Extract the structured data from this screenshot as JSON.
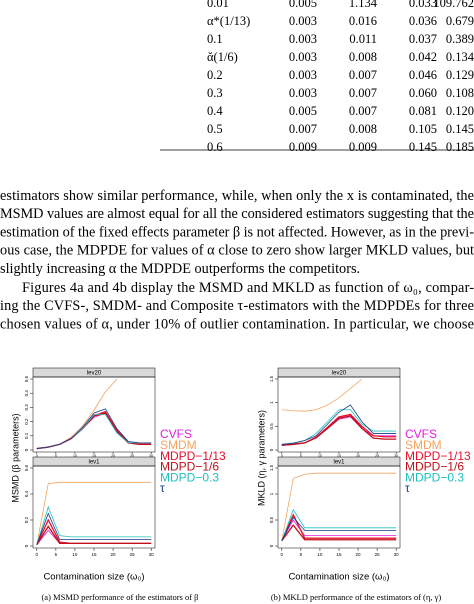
{
  "table": {
    "rows": [
      [
        "0.01",
        "0.005",
        "1.134",
        "0.033",
        "109.762"
      ],
      [
        "α*(1/13)",
        "0.003",
        "0.016",
        "0.036",
        "0.679"
      ],
      [
        "0.1",
        "0.003",
        "0.011",
        "0.037",
        "0.389"
      ],
      [
        "ᾰ(1/6)",
        "0.003",
        "0.008",
        "0.042",
        "0.134"
      ],
      [
        "0.2",
        "0.003",
        "0.007",
        "0.046",
        "0.129"
      ],
      [
        "0.3",
        "0.003",
        "0.007",
        "0.060",
        "0.108"
      ],
      [
        "0.4",
        "0.005",
        "0.007",
        "0.081",
        "0.120"
      ],
      [
        "0.5",
        "0.007",
        "0.008",
        "0.105",
        "0.145"
      ],
      [
        "0.6",
        "0.009",
        "0.009",
        "0.145",
        "0.185"
      ]
    ]
  },
  "text": {
    "lines": [
      "estimators show similar performance, while, when only the x is contaminated, the",
      "MSMD values are almost equal for all the considered estimators suggesting that the",
      "estimation of the fixed effects parameter β is not affected. However, as in the previ-",
      "ous case, the MDPDE for values of α close to zero show larger MKLD values, but",
      "slightly increasing α the MDPDE outperforms the competitors.",
      "Figures 4a and 4b display the MSMD and MKLD as function of ω₀, compar-",
      "ing the CVFS-, SMDM- and Composite τ-estimators with the MDPDEs for three",
      "chosen values of α, under 10% of outlier contamination. In particular, we choose"
    ]
  },
  "figures": [
    {
      "caption": "(a) MSMD performance of the estimators of β",
      "ylabel": "MSMD (β parameters)",
      "xlabel": "Contamination size (ω₀)",
      "x": [
        0,
        3,
        6,
        9,
        12,
        15,
        18,
        21,
        24,
        27,
        30
      ],
      "xlim": [
        -1,
        31
      ],
      "xticks": [
        0,
        5,
        10,
        15,
        20,
        25,
        30
      ],
      "legend": [
        {
          "name": "CVFS",
          "color": "#e020e0"
        },
        {
          "name": "SMDM",
          "color": "#f4a460"
        },
        {
          "name": "MDPD−1/13",
          "color": "#e8102a"
        },
        {
          "name": "MDPD−1/6",
          "color": "#c0101c"
        },
        {
          "name": "MDPD−0.3",
          "color": "#20c0c0"
        },
        {
          "name": "τ",
          "color": "#1a3a8a"
        }
      ],
      "panels": [
        {
          "title": "lev20",
          "ylim": [
            0,
            0.5
          ],
          "yticks": [
            0,
            0.1,
            0.2,
            0.3,
            0.4,
            0.5
          ],
          "series": [
            [
              0.01,
              0.02,
              0.04,
              0.08,
              0.15,
              0.23,
              0.26,
              0.13,
              0.05,
              0.04,
              0.04
            ],
            [
              0.01,
              0.02,
              0.04,
              0.09,
              0.17,
              0.28,
              0.41,
              0.5,
              null,
              null,
              null
            ],
            [
              0.01,
              0.02,
              0.04,
              0.08,
              0.15,
              0.24,
              0.27,
              0.14,
              0.05,
              0.04,
              0.04
            ],
            [
              0.01,
              0.02,
              0.04,
              0.08,
              0.15,
              0.24,
              0.26,
              0.13,
              0.05,
              0.04,
              0.04
            ],
            [
              0.01,
              0.02,
              0.04,
              0.08,
              0.15,
              0.25,
              0.25,
              0.12,
              0.05,
              0.05,
              0.05
            ],
            [
              0.01,
              0.02,
              0.04,
              0.08,
              0.16,
              0.26,
              0.29,
              0.15,
              0.06,
              0.05,
              0.05
            ]
          ]
        },
        {
          "title": "lev1",
          "ylim": [
            0,
            0.6
          ],
          "yticks": [
            0,
            0.2,
            0.4,
            0.6
          ],
          "series": [
            [
              0.01,
              0.12,
              0.02,
              0.02,
              0.02,
              0.02,
              0.02,
              0.02,
              0.02,
              0.02,
              0.02
            ],
            [
              0.01,
              0.48,
              0.49,
              0.49,
              0.49,
              0.49,
              0.49,
              0.49,
              0.49,
              0.49,
              0.49
            ],
            [
              0.01,
              0.2,
              0.03,
              0.02,
              0.02,
              0.02,
              0.02,
              0.02,
              0.02,
              0.02,
              0.02
            ],
            [
              0.01,
              0.15,
              0.02,
              0.02,
              0.02,
              0.02,
              0.02,
              0.02,
              0.02,
              0.02,
              0.02
            ],
            [
              0.01,
              0.3,
              0.08,
              0.07,
              0.07,
              0.07,
              0.07,
              0.07,
              0.07,
              0.07,
              0.07
            ],
            [
              0.01,
              0.25,
              0.05,
              0.05,
              0.05,
              0.05,
              0.05,
              0.05,
              0.05,
              0.05,
              0.05
            ]
          ]
        }
      ]
    },
    {
      "caption": "(b) MKLD performance of the estimators of (η, γ)",
      "ylabel": "MKLD (η, γ parameters)",
      "xlabel": "Contamination size (ω₀)",
      "x": [
        0,
        3,
        6,
        9,
        12,
        15,
        18,
        21,
        24,
        27,
        30
      ],
      "xlim": [
        -1,
        31
      ],
      "xticks": [
        0,
        5,
        10,
        15,
        20,
        25,
        30
      ],
      "legend": [
        {
          "name": "CVFS",
          "color": "#e020e0"
        },
        {
          "name": "SMDM",
          "color": "#f4a460"
        },
        {
          "name": "MDPD−1/13",
          "color": "#e8102a"
        },
        {
          "name": "MDPD−1/6",
          "color": "#c0101c"
        },
        {
          "name": "MDPD−0.3",
          "color": "#20c0c0"
        },
        {
          "name": "τ",
          "color": "#1a3a8a"
        }
      ],
      "panels": [
        {
          "title": "lev20",
          "ylim": [
            0,
            1.5
          ],
          "yticks": [
            0,
            0.5,
            1,
            1.5
          ],
          "series": [
            [
              0.1,
              0.12,
              0.15,
              0.25,
              0.45,
              0.65,
              0.7,
              0.45,
              0.3,
              0.3,
              0.3
            ],
            [
              0.85,
              0.83,
              0.82,
              0.85,
              0.95,
              1.1,
              1.3,
              1.5,
              null,
              null,
              null
            ],
            [
              0.1,
              0.12,
              0.15,
              0.27,
              0.48,
              0.7,
              0.75,
              0.5,
              0.3,
              0.28,
              0.28
            ],
            [
              0.1,
              0.12,
              0.15,
              0.26,
              0.46,
              0.67,
              0.72,
              0.46,
              0.25,
              0.23,
              0.23
            ],
            [
              0.12,
              0.15,
              0.2,
              0.35,
              0.6,
              0.85,
              0.85,
              0.55,
              0.4,
              0.4,
              0.4
            ],
            [
              0.12,
              0.14,
              0.2,
              0.3,
              0.55,
              0.8,
              0.95,
              0.6,
              0.35,
              0.35,
              0.35
            ]
          ]
        },
        {
          "title": "lev1",
          "ylim": [
            0,
            1.5
          ],
          "yticks": [
            0,
            0.5,
            1,
            1.5
          ],
          "series": [
            [
              0.1,
              0.5,
              0.2,
              0.2,
              0.2,
              0.2,
              0.2,
              0.2,
              0.2,
              0.2,
              0.2
            ],
            [
              0.1,
              1.3,
              1.38,
              1.4,
              1.4,
              1.4,
              1.4,
              1.4,
              1.4,
              1.4,
              1.4
            ],
            [
              0.1,
              0.6,
              0.15,
              0.15,
              0.15,
              0.15,
              0.15,
              0.15,
              0.15,
              0.15,
              0.15
            ],
            [
              0.1,
              0.4,
              0.12,
              0.12,
              0.12,
              0.12,
              0.12,
              0.12,
              0.12,
              0.12,
              0.12
            ],
            [
              0.1,
              0.7,
              0.35,
              0.35,
              0.35,
              0.35,
              0.35,
              0.35,
              0.35,
              0.35,
              0.35
            ],
            [
              0.1,
              0.55,
              0.3,
              0.3,
              0.3,
              0.3,
              0.3,
              0.3,
              0.3,
              0.3,
              0.3
            ]
          ]
        }
      ]
    }
  ]
}
